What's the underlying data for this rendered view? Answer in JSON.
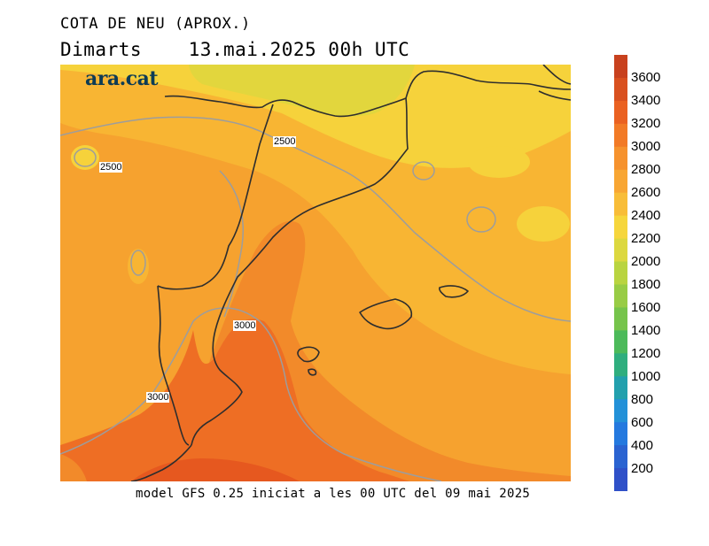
{
  "title": "COTA DE NEU (APROX.)",
  "day": "Dimarts",
  "date_time": "13.mai.2025 00h UTC",
  "footer": "model GFS 0.25 iniciat a les 00 UTC del 09 mai 2025",
  "logo": "ara.cat",
  "contour_labels": [
    "2500",
    "2500",
    "3000",
    "3000"
  ],
  "colorbar": {
    "ticks": [
      "3600",
      "3400",
      "3200",
      "3000",
      "2800",
      "2600",
      "2400",
      "2200",
      "2000",
      "1800",
      "1600",
      "1400",
      "1200",
      "1000",
      "800",
      "600",
      "400",
      "200"
    ],
    "colors": [
      "#c8411e",
      "#d9501f",
      "#ea6121",
      "#f27a26",
      "#f6922d",
      "#f8a633",
      "#f8bd38",
      "#f6d63c",
      "#dcd83f",
      "#b9d440",
      "#98cc45",
      "#76c44b",
      "#4cba5a",
      "#2fae7e",
      "#22a0ad",
      "#2391d8",
      "#2479df",
      "#2a63d1",
      "#2f50c8"
    ]
  }
}
